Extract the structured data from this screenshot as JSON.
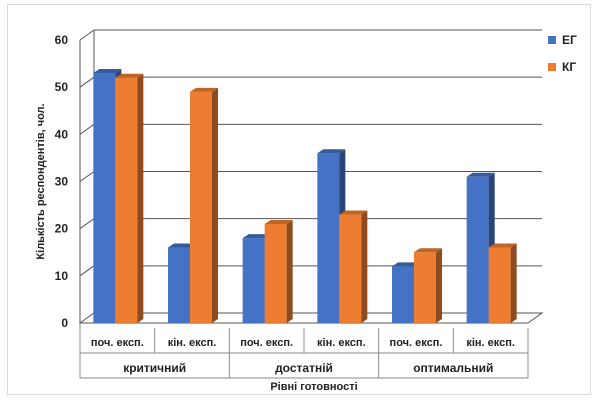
{
  "chart_data": {
    "type": "bar",
    "ylabel": "Кількість респондентів, чол.",
    "xlabel": "Рівні готовності",
    "ylim": [
      0,
      60
    ],
    "yticks": [
      0,
      10,
      20,
      30,
      40,
      50,
      60
    ],
    "grid": true,
    "legend_position": "right",
    "groups": [
      {
        "label": "критичний",
        "categories": [
          "поч. експ.",
          "кін. експ."
        ]
      },
      {
        "label": "достатній",
        "categories": [
          "поч. експ.",
          "кін. експ."
        ]
      },
      {
        "label": "оптимальний",
        "categories": [
          "поч. експ.",
          "кін. експ."
        ]
      }
    ],
    "categories": [
      "поч. експ.",
      "кін. експ.",
      "поч. експ.",
      "кін. експ.",
      "поч. експ.",
      "кін. експ."
    ],
    "series": [
      {
        "name": "ЕГ",
        "color": "#4472C4",
        "values": [
          53,
          16,
          18,
          36,
          12,
          31
        ]
      },
      {
        "name": "КГ",
        "color": "#ED7D31",
        "values": [
          52,
          49,
          21,
          23,
          15,
          16
        ]
      }
    ]
  }
}
